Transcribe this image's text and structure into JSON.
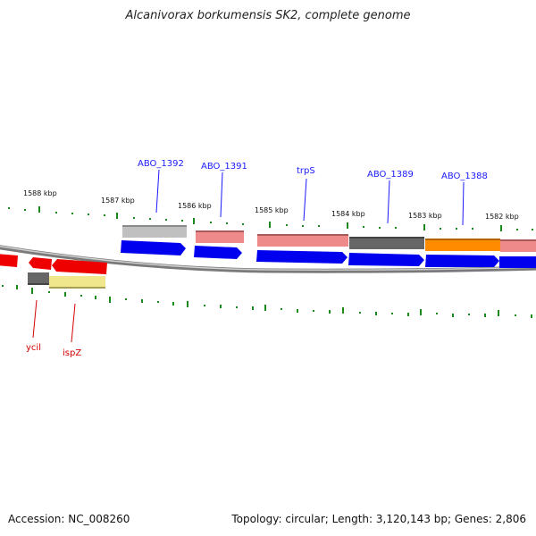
{
  "title": "Alcanivorax borkumensis SK2, complete genome",
  "footer": {
    "accession": "Accession: NC_008260",
    "summary": "Topology: circular; Length: 3,120,143 bp; Genes: 2,806"
  },
  "colors": {
    "cds": "#0000ee",
    "cds_minus": "#ee0000",
    "backbone": "#808080",
    "ticks": "#1a8a1a",
    "label_top": "#1a1aff",
    "label_bottom": "#d40000"
  },
  "scale_labels": [
    "1588 kbp",
    "1587 kbp",
    "1586 kbp",
    "1585 kbp",
    "1584 kbp",
    "1583 kbp",
    "1582 kbp"
  ],
  "top_gene_labels": [
    "ABO_1392",
    "ABO_1391",
    "trpS",
    "ABO_1389",
    "ABO_1388"
  ],
  "bottom_gene_labels": [
    "ycil",
    "ispZ"
  ]
}
